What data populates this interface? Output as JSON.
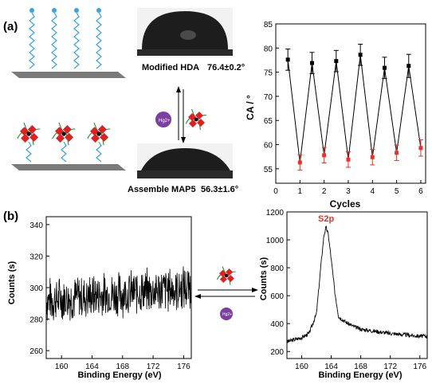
{
  "panel_a_label": "(a)",
  "panel_b_label": "(b)",
  "schematic": {
    "modified_caption": "Modified HDA",
    "modified_angle": "76.4±0.2°",
    "assembled_caption": "Assemble MAP5",
    "assembled_angle": "56.3±1.6°",
    "hg_label": "Hg2+"
  },
  "colors": {
    "cycle_high": "#000000",
    "cycle_low": "#e8322b",
    "substrate": "#7a7a7a",
    "chain": "#3aa3e0",
    "hg_ball": "#7a3fa0",
    "molecule": "#e02020",
    "molecule_arm": "#2f9a3c",
    "s2p_label": "#e8322b"
  },
  "chart_data": [
    {
      "type": "line",
      "xlabel": "Cycles",
      "ylabel": "CA / °",
      "xlim": [
        0,
        6.2
      ],
      "ylim": [
        52,
        85
      ],
      "xticks": [
        "0",
        "1",
        "2",
        "3",
        "4",
        "5",
        "6"
      ],
      "yticks": [
        "55",
        "60",
        "65",
        "70",
        "75",
        "80",
        "85"
      ],
      "series": [
        {
          "x": [
            0.5,
            1,
            1.5,
            2,
            2.5,
            3,
            3.5,
            4,
            4.5,
            5,
            5.5,
            6
          ],
          "values": [
            77.6,
            56.3,
            76.9,
            57.8,
            77.3,
            56.9,
            78.6,
            57.4,
            75.9,
            58.3,
            76.3,
            59.3
          ],
          "errors": [
            2.2,
            1.6,
            2.2,
            1.6,
            2.2,
            1.6,
            2.2,
            1.6,
            2.2,
            1.6,
            2.4,
            1.7
          ]
        }
      ]
    },
    {
      "type": "line",
      "xlabel": "Binding Energy (eV)",
      "ylabel": "Counts (s)",
      "xlim": [
        158,
        177
      ],
      "ylim": [
        255,
        345
      ],
      "xticks": [
        "160",
        "164",
        "168",
        "172",
        "176"
      ],
      "yticks": [
        "260",
        "280",
        "300",
        "320",
        "340"
      ],
      "series": [
        {
          "x": [
            158,
            177
          ],
          "values": [
            292,
            300
          ],
          "noise_amplitude": 10
        }
      ]
    },
    {
      "type": "line",
      "xlabel": "Binding Energy (eV)",
      "ylabel": "Counts (s)",
      "xlim": [
        158,
        177
      ],
      "ylim": [
        150,
        1200
      ],
      "xticks": [
        "160",
        "164",
        "168",
        "172",
        "176"
      ],
      "yticks": [
        "200",
        "400",
        "600",
        "800",
        "1000",
        "1200"
      ],
      "annotations": [
        {
          "x": 163.3,
          "y": 1110,
          "text": "S2p"
        }
      ],
      "series": [
        {
          "x": [
            158,
            160,
            161,
            162,
            162.5,
            163,
            163.3,
            163.6,
            164,
            164.5,
            165,
            166,
            167,
            168,
            170,
            172,
            174,
            176,
            177
          ],
          "values": [
            270,
            300,
            330,
            470,
            760,
            1030,
            1090,
            1040,
            860,
            620,
            450,
            410,
            380,
            360,
            345,
            330,
            320,
            310,
            310
          ]
        }
      ]
    }
  ]
}
